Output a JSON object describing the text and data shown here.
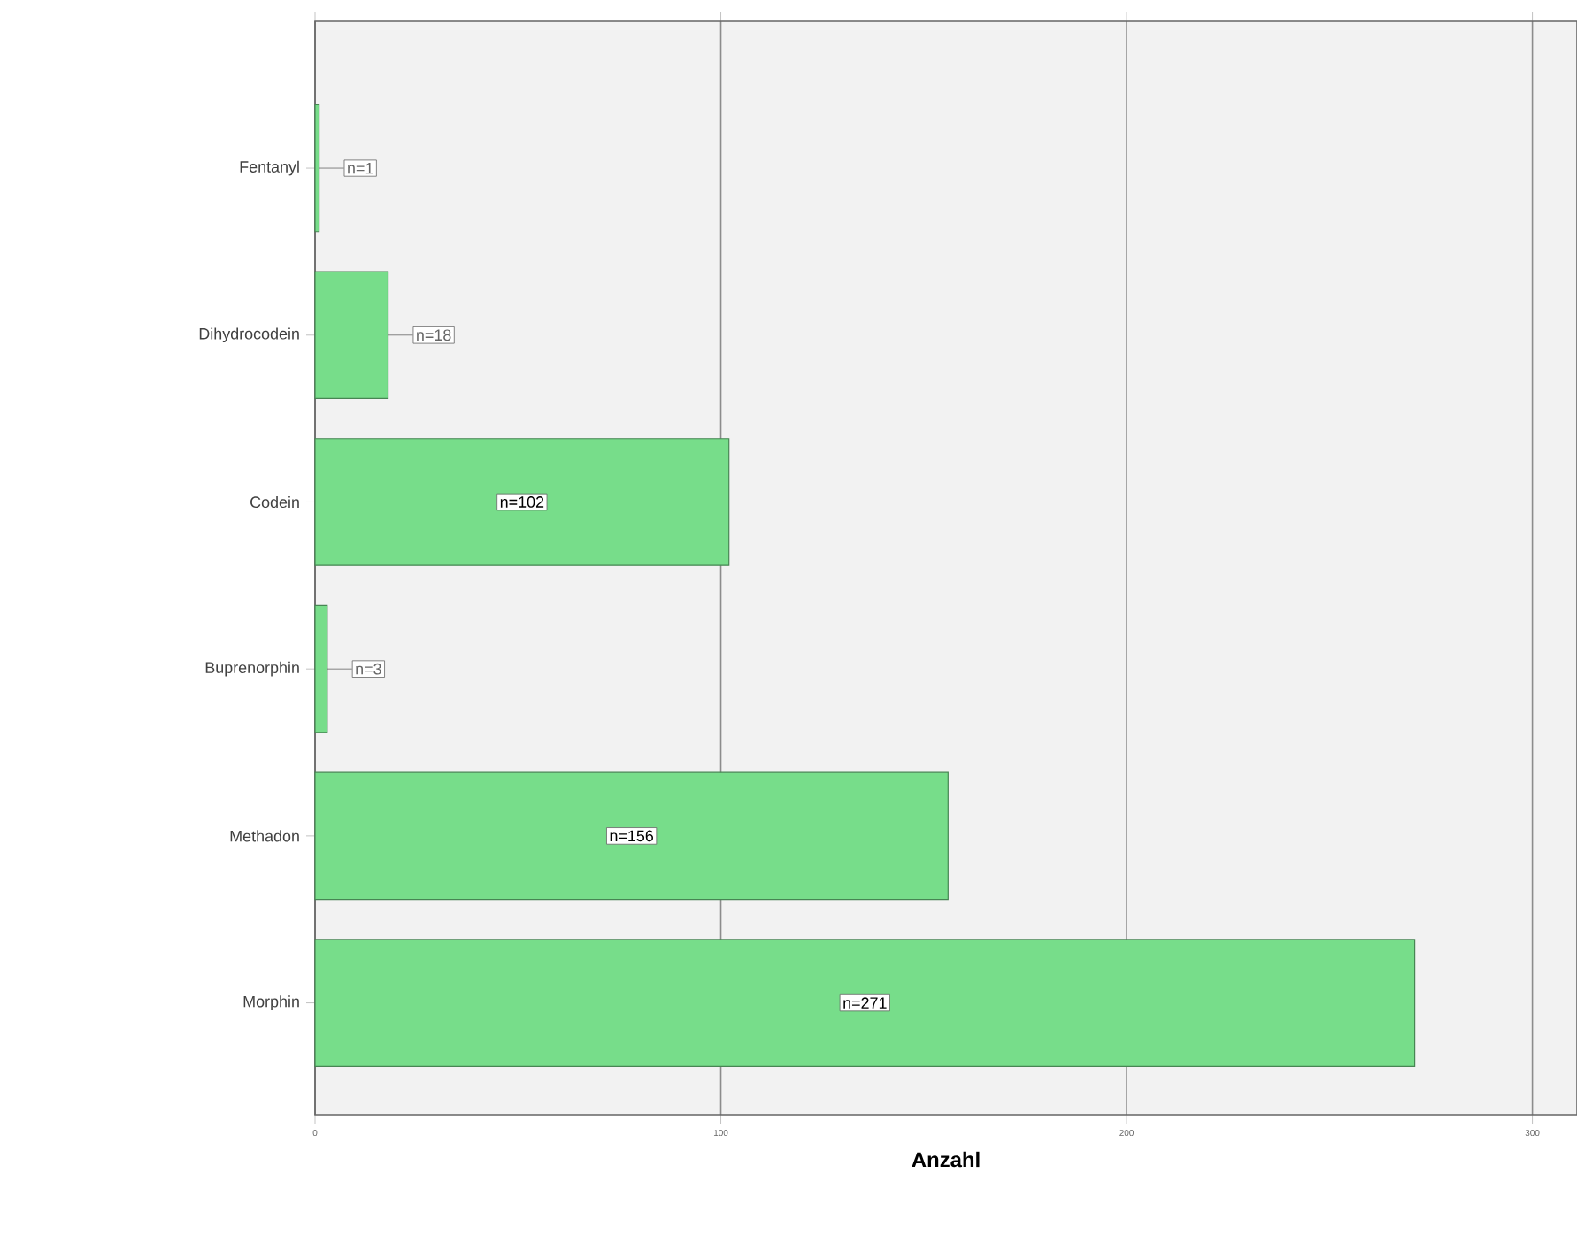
{
  "chart_data": {
    "type": "bar",
    "orientation": "horizontal",
    "xlabel": "Anzahl",
    "categories": [
      "Fentanyl",
      "Dihydrocodein",
      "Codein",
      "Buprenorphin",
      "Methadon",
      "Morphin"
    ],
    "values": [
      1,
      18,
      102,
      3,
      156,
      271
    ],
    "value_labels": [
      "n=1",
      "n=18",
      "n=102",
      "n=3",
      "n=156",
      "n=271"
    ],
    "color": "#77dd8a",
    "xlim": [
      0,
      311
    ],
    "xticks": [
      0,
      100,
      200,
      300
    ],
    "grid": "x"
  }
}
